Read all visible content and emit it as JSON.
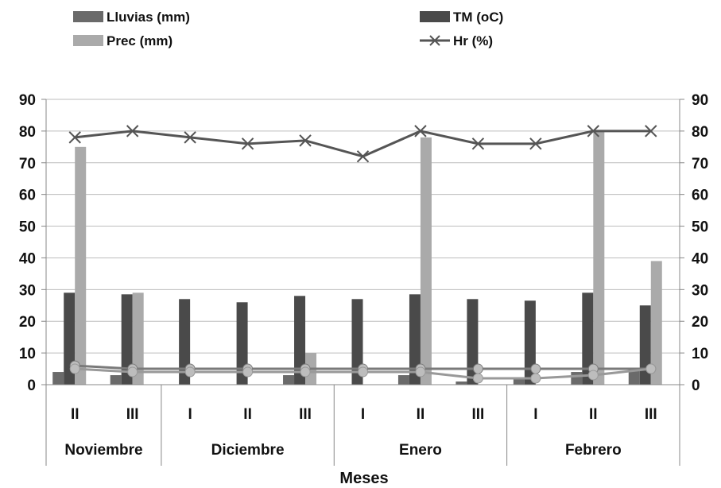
{
  "chart_data": {
    "type": "bar",
    "xlabel": "Meses",
    "ylim": [
      0,
      90
    ],
    "y_ticks": [
      "0",
      "10",
      "20",
      "30",
      "40",
      "50",
      "60",
      "70",
      "80",
      "90"
    ],
    "grid": true,
    "legend_position": "top",
    "groups": [
      {
        "name": "Noviembre",
        "categories": [
          "II",
          "III"
        ]
      },
      {
        "name": "Diciembre",
        "categories": [
          "I",
          "II",
          "III"
        ]
      },
      {
        "name": "Enero",
        "categories": [
          "I",
          "II",
          "III"
        ]
      },
      {
        "name": "Febrero",
        "categories": [
          "I",
          "II",
          "III"
        ]
      }
    ],
    "categories": [
      "II",
      "III",
      "I",
      "II",
      "III",
      "I",
      "II",
      "III",
      "I",
      "II",
      "III"
    ],
    "series": [
      {
        "name": "Lluvias (mm)",
        "kind": "bar",
        "color": "#6a6a6a",
        "values": [
          4,
          3,
          0,
          0,
          3,
          0,
          3,
          1,
          2,
          4,
          5
        ]
      },
      {
        "name": "TM (oC)",
        "kind": "bar",
        "color": "#4a4a4a",
        "values": [
          29,
          28.5,
          27,
          26,
          28,
          27,
          28.5,
          27,
          26.5,
          29,
          25
        ]
      },
      {
        "name": "Prec (mm)",
        "kind": "bar",
        "color": "#aaaaaa",
        "values": [
          75,
          29,
          0,
          0,
          10,
          0,
          78,
          0,
          0,
          80,
          39
        ]
      },
      {
        "name": "Hr (%)",
        "kind": "line",
        "color": "#555555",
        "values": [
          78,
          80,
          78,
          76,
          77,
          72,
          80,
          76,
          76,
          80,
          80
        ]
      }
    ],
    "extra_lines": [
      {
        "color": "#7a7a7a",
        "values": [
          6,
          5,
          5,
          5,
          5,
          5,
          5,
          5,
          5,
          5,
          5
        ]
      },
      {
        "color": "#999999",
        "values": [
          5,
          4,
          4,
          4,
          4,
          4,
          4,
          2,
          2,
          3,
          5
        ]
      }
    ]
  }
}
